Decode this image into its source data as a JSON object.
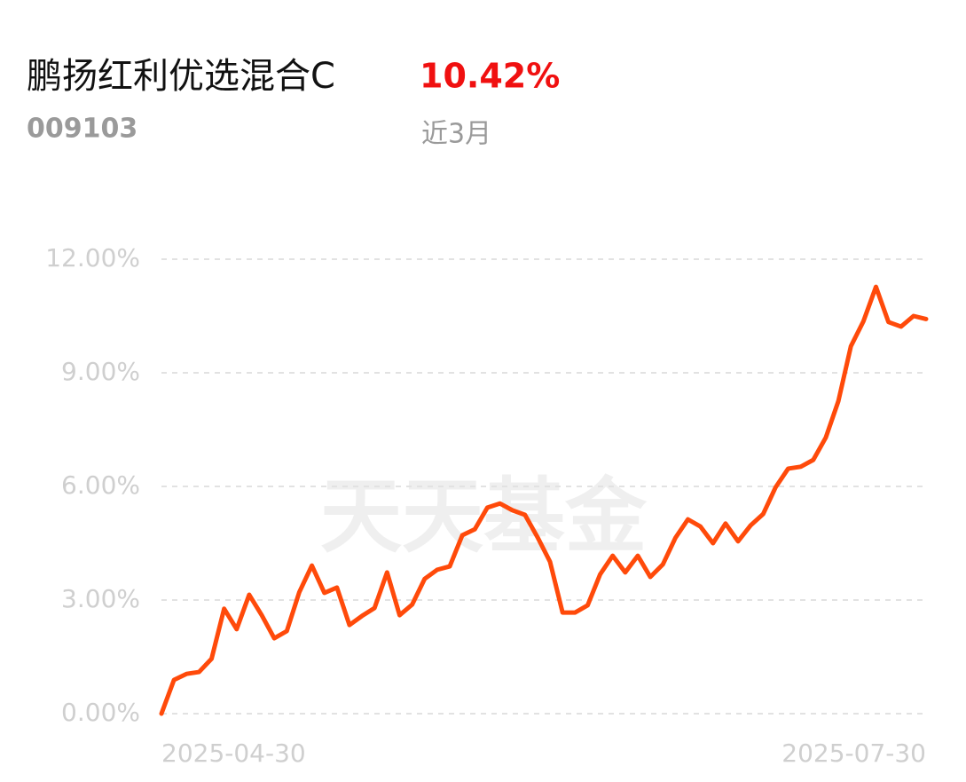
{
  "chart_data": {
    "type": "line",
    "title": "鹏扬红利优选混合C",
    "code": "009103",
    "return_label": "10.42%",
    "period": "近3月",
    "watermark": "天天基金",
    "categories": [
      "2025-04-30",
      null,
      null,
      null,
      null,
      null,
      null,
      null,
      null,
      null,
      null,
      null,
      null,
      null,
      null,
      null,
      null,
      null,
      null,
      null,
      null,
      null,
      null,
      null,
      null,
      null,
      null,
      null,
      null,
      null,
      null,
      null,
      null,
      null,
      null,
      null,
      null,
      null,
      null,
      null,
      null,
      null,
      null,
      null,
      null,
      null,
      null,
      null,
      null,
      null,
      null,
      null,
      null,
      null,
      null,
      null,
      null,
      null,
      null,
      null,
      null,
      "2025-07-30"
    ],
    "series": [
      {
        "name": "鹏扬红利优选混合C",
        "color": "#ff4a0a",
        "values": [
          0,
          0.89,
          1.05,
          1.1,
          1.45,
          2.77,
          2.23,
          3.14,
          2.6,
          1.99,
          2.18,
          3.21,
          3.91,
          3.19,
          3.33,
          2.34,
          2.58,
          2.79,
          3.73,
          2.6,
          2.88,
          3.56,
          3.8,
          3.89,
          4.71,
          4.87,
          5.44,
          5.55,
          5.37,
          5.25,
          4.66,
          4.01,
          2.67,
          2.67,
          2.86,
          3.68,
          4.17,
          3.73,
          4.17,
          3.61,
          3.94,
          4.64,
          5.13,
          4.94,
          4.5,
          5.02,
          4.55,
          4.97,
          5.27,
          5.98,
          6.47,
          6.52,
          6.7,
          7.29,
          8.25,
          9.7,
          10.36,
          11.27,
          10.34,
          10.22,
          10.5,
          10.42
        ]
      }
    ],
    "ylim": [
      0,
      12
    ],
    "yticks": [
      {
        "value": 0,
        "label": "0.00%"
      },
      {
        "value": 3,
        "label": "3.00%"
      },
      {
        "value": 6,
        "label": "6.00%"
      },
      {
        "value": 9,
        "label": "9.00%"
      },
      {
        "value": 12,
        "label": "12.00%"
      }
    ],
    "grid": true
  }
}
